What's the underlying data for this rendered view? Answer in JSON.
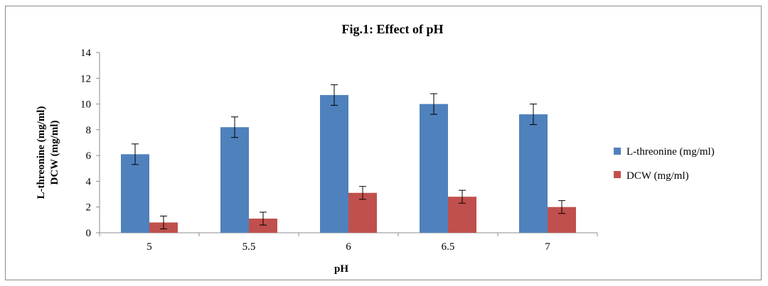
{
  "chart_data": {
    "type": "bar",
    "title": "Fig.1: Effect of pH",
    "xlabel": "pH",
    "ylabel_lines": [
      "L-threonine (mg/ml)",
      "DCW (mg/ml)"
    ],
    "categories": [
      "5",
      "5.5",
      "6",
      "6.5",
      "7"
    ],
    "ylim": [
      0,
      14
    ],
    "yticks": [
      "0",
      "2",
      "4",
      "6",
      "8",
      "10",
      "12",
      "14"
    ],
    "grid": false,
    "legend_position": "right",
    "series": [
      {
        "name": "L-threonine (mg/ml)",
        "color": "#4f81bd",
        "values": [
          6.1,
          8.2,
          10.7,
          10.0,
          9.2
        ],
        "errors": [
          0.8,
          0.8,
          0.8,
          0.8,
          0.8
        ]
      },
      {
        "name": "DCW (mg/ml)",
        "color": "#c0504d",
        "values": [
          0.8,
          1.1,
          3.1,
          2.8,
          2.0
        ],
        "errors": [
          0.5,
          0.5,
          0.5,
          0.5,
          0.5
        ]
      }
    ]
  }
}
